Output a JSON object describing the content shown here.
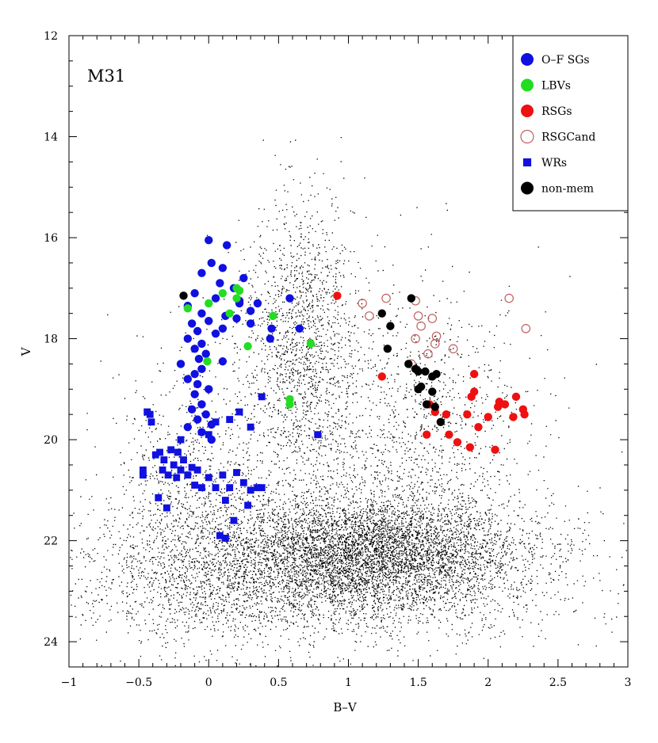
{
  "chart_data": {
    "type": "scatter",
    "annotation": "M31",
    "xlabel": "B–V",
    "ylabel": "V",
    "xlim": [
      -1,
      3
    ],
    "ylim": [
      24.5,
      12
    ],
    "y_inverted": true,
    "grid": false,
    "legend_position": "top-right",
    "x_ticks": [
      -1,
      -0.5,
      0,
      0.5,
      1,
      1.5,
      2,
      2.5,
      3
    ],
    "x_tick_labels": [
      "−1",
      "−0.5",
      "0",
      "0.5",
      "1",
      "1.5",
      "2",
      "2.5",
      "3"
    ],
    "y_ticks": [
      12,
      14,
      16,
      18,
      20,
      22,
      24
    ],
    "y_tick_labels": [
      "12",
      "14",
      "16",
      "18",
      "20",
      "22",
      "24"
    ],
    "background_field": {
      "components": [
        {
          "n": 4500,
          "center": [
            1.15,
            22.2
          ],
          "spread": [
            0.55,
            0.55
          ],
          "color": "#000000"
        },
        {
          "n": 2600,
          "center": [
            0.65,
            22.5
          ],
          "spread": [
            0.9,
            0.75
          ],
          "color": "#000000"
        },
        {
          "n": 1600,
          "center": [
            0.65,
            18.2
          ],
          "spread": [
            0.2,
            1.5
          ],
          "color": "#000000"
        },
        {
          "n": 1300,
          "center": [
            1.45,
            20.0
          ],
          "spread": [
            0.4,
            1.5
          ],
          "color": "#000000"
        },
        {
          "n": 900,
          "center": [
            -0.1,
            21.0
          ],
          "spread": [
            0.28,
            1.3
          ],
          "color": "#000000"
        },
        {
          "n": 700,
          "center": [
            0.6,
            23.1
          ],
          "spread": [
            1.1,
            0.45
          ],
          "color": "#000000"
        }
      ]
    },
    "series": [
      {
        "name": "O–F SGs",
        "marker": "circle-filled",
        "color": "#1010e0",
        "points": [
          [
            0.0,
            16.05
          ],
          [
            0.13,
            16.15
          ],
          [
            0.02,
            16.5
          ],
          [
            0.1,
            16.6
          ],
          [
            -0.05,
            16.7
          ],
          [
            0.25,
            16.8
          ],
          [
            0.08,
            16.9
          ],
          [
            0.18,
            17.0
          ],
          [
            -0.1,
            17.1
          ],
          [
            0.05,
            17.2
          ],
          [
            0.22,
            17.25
          ],
          [
            0.35,
            17.3
          ],
          [
            -0.15,
            17.35
          ],
          [
            0.3,
            17.45
          ],
          [
            -0.05,
            17.5
          ],
          [
            0.12,
            17.55
          ],
          [
            0.2,
            17.6
          ],
          [
            0.0,
            17.65
          ],
          [
            0.3,
            17.7
          ],
          [
            -0.12,
            17.7
          ],
          [
            0.45,
            17.8
          ],
          [
            0.1,
            17.8
          ],
          [
            -0.08,
            17.85
          ],
          [
            0.05,
            17.9
          ],
          [
            -0.15,
            18.0
          ],
          [
            0.44,
            18.0
          ],
          [
            -0.05,
            18.1
          ],
          [
            -0.1,
            18.2
          ],
          [
            -0.02,
            18.3
          ],
          [
            -0.07,
            18.4
          ],
          [
            -0.2,
            18.5
          ],
          [
            -0.05,
            18.6
          ],
          [
            -0.1,
            18.7
          ],
          [
            -0.15,
            18.8
          ],
          [
            -0.08,
            18.9
          ],
          [
            0.0,
            19.0
          ],
          [
            -0.1,
            19.1
          ],
          [
            -0.05,
            19.3
          ],
          [
            -0.12,
            19.4
          ],
          [
            -0.02,
            19.5
          ],
          [
            -0.08,
            19.6
          ],
          [
            0.02,
            19.7
          ],
          [
            -0.15,
            19.75
          ],
          [
            -0.05,
            19.85
          ],
          [
            0.02,
            20.0
          ],
          [
            0.58,
            17.2
          ],
          [
            0.65,
            17.8
          ],
          [
            0.1,
            18.45
          ],
          [
            0.22,
            17.3
          ]
        ]
      },
      {
        "name": "LBVs",
        "marker": "circle-filled",
        "color": "#22dd22",
        "points": [
          [
            0.2,
            17.0
          ],
          [
            0.22,
            17.05
          ],
          [
            0.1,
            17.1
          ],
          [
            0.2,
            17.2
          ],
          [
            0.0,
            17.3
          ],
          [
            -0.15,
            17.4
          ],
          [
            0.15,
            17.5
          ],
          [
            0.46,
            17.55
          ],
          [
            0.28,
            18.15
          ],
          [
            0.73,
            18.1
          ],
          [
            -0.01,
            18.45
          ],
          [
            0.58,
            19.2
          ],
          [
            0.58,
            19.3
          ]
        ]
      },
      {
        "name": "RSGs",
        "marker": "circle-filled",
        "color": "#ee1111",
        "points": [
          [
            0.92,
            17.15
          ],
          [
            1.24,
            18.75
          ],
          [
            1.56,
            19.9
          ],
          [
            1.7,
            19.5
          ],
          [
            1.72,
            19.9
          ],
          [
            1.78,
            20.05
          ],
          [
            1.85,
            19.5
          ],
          [
            1.87,
            20.15
          ],
          [
            1.88,
            19.15
          ],
          [
            1.9,
            18.7
          ],
          [
            1.9,
            19.05
          ],
          [
            1.93,
            19.75
          ],
          [
            2.0,
            19.55
          ],
          [
            2.05,
            20.2
          ],
          [
            2.07,
            19.35
          ],
          [
            2.08,
            19.25
          ],
          [
            2.12,
            19.3
          ],
          [
            2.18,
            19.55
          ],
          [
            2.2,
            19.15
          ],
          [
            2.25,
            19.4
          ],
          [
            2.26,
            19.5
          ],
          [
            1.62,
            19.45
          ],
          [
            1.58,
            19.3
          ]
        ]
      },
      {
        "name": "RSGCand",
        "marker": "circle-open",
        "color": "#c06060",
        "points": [
          [
            1.1,
            17.3
          ],
          [
            1.15,
            17.55
          ],
          [
            1.27,
            17.2
          ],
          [
            1.48,
            17.25
          ],
          [
            1.52,
            17.75
          ],
          [
            1.6,
            17.6
          ],
          [
            1.63,
            17.95
          ],
          [
            1.5,
            17.55
          ],
          [
            1.48,
            18.0
          ],
          [
            1.45,
            18.5
          ],
          [
            1.57,
            18.3
          ],
          [
            1.62,
            18.1
          ],
          [
            1.75,
            18.2
          ],
          [
            2.15,
            17.2
          ],
          [
            2.27,
            17.8
          ]
        ]
      },
      {
        "name": "WRs",
        "marker": "square",
        "color": "#1010e0",
        "points": [
          [
            -0.47,
            20.6
          ],
          [
            -0.47,
            20.7
          ],
          [
            -0.44,
            19.45
          ],
          [
            -0.42,
            19.5
          ],
          [
            -0.41,
            19.65
          ],
          [
            -0.38,
            20.3
          ],
          [
            -0.36,
            21.15
          ],
          [
            -0.35,
            20.25
          ],
          [
            -0.33,
            20.6
          ],
          [
            -0.32,
            20.4
          ],
          [
            -0.3,
            21.35
          ],
          [
            -0.29,
            20.7
          ],
          [
            -0.27,
            20.2
          ],
          [
            -0.25,
            20.5
          ],
          [
            -0.23,
            20.75
          ],
          [
            -0.22,
            20.25
          ],
          [
            -0.2,
            20.6
          ],
          [
            -0.18,
            20.4
          ],
          [
            -0.15,
            20.7
          ],
          [
            -0.12,
            20.55
          ],
          [
            -0.1,
            20.9
          ],
          [
            -0.08,
            20.6
          ],
          [
            -0.05,
            20.95
          ],
          [
            0.0,
            20.75
          ],
          [
            0.05,
            20.95
          ],
          [
            0.1,
            20.7
          ],
          [
            0.12,
            21.2
          ],
          [
            0.15,
            20.95
          ],
          [
            0.2,
            20.65
          ],
          [
            0.25,
            20.85
          ],
          [
            0.28,
            21.3
          ],
          [
            0.3,
            21.0
          ],
          [
            0.35,
            20.95
          ],
          [
            0.38,
            20.95
          ],
          [
            0.08,
            21.9
          ],
          [
            0.12,
            21.95
          ],
          [
            0.18,
            21.6
          ],
          [
            0.22,
            19.45
          ],
          [
            0.15,
            19.6
          ],
          [
            0.3,
            19.75
          ],
          [
            0.38,
            19.15
          ],
          [
            0.78,
            19.9
          ],
          [
            0.0,
            19.9
          ],
          [
            0.05,
            19.65
          ],
          [
            -0.2,
            20.0
          ]
        ]
      },
      {
        "name": "non-mem",
        "marker": "circle-filled",
        "color": "#000000",
        "points": [
          [
            -0.18,
            17.15
          ],
          [
            1.24,
            17.5
          ],
          [
            1.28,
            18.2
          ],
          [
            1.3,
            17.75
          ],
          [
            1.43,
            18.5
          ],
          [
            1.45,
            17.2
          ],
          [
            1.48,
            18.6
          ],
          [
            1.5,
            18.65
          ],
          [
            1.5,
            19.0
          ],
          [
            1.52,
            18.95
          ],
          [
            1.55,
            18.65
          ],
          [
            1.56,
            19.3
          ],
          [
            1.6,
            18.75
          ],
          [
            1.6,
            19.05
          ],
          [
            1.62,
            19.35
          ],
          [
            1.63,
            18.7
          ],
          [
            1.66,
            19.65
          ]
        ]
      }
    ]
  }
}
